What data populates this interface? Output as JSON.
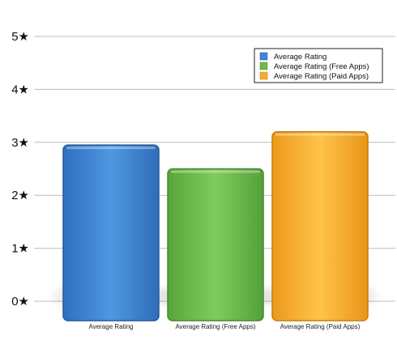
{
  "chart_data": {
    "type": "bar",
    "categories": [
      "Average Rating",
      "Average Rating (Free Apps)",
      "Average Rating (Paid Apps)"
    ],
    "values": [
      2.95,
      2.5,
      3.2
    ],
    "series": [
      {
        "name": "Average Rating",
        "color": "#3f86d6",
        "values": [
          2.95,
          null,
          null
        ]
      },
      {
        "name": "Average Rating (Free Apps)",
        "color": "#6cbb4a",
        "values": [
          null,
          2.5,
          null
        ]
      },
      {
        "name": "Average Rating (Paid Apps)",
        "color": "#f5ad2e",
        "values": [
          null,
          null,
          3.2
        ]
      }
    ],
    "ylim": [
      0,
      5
    ],
    "yticks": [
      0,
      1,
      2,
      3,
      4,
      5
    ],
    "ytick_labels": [
      "0★",
      "1★",
      "2★",
      "3★",
      "4★",
      "5★"
    ],
    "grid": true,
    "legend_position": "top-right",
    "title": "",
    "xlabel": "",
    "ylabel": ""
  }
}
